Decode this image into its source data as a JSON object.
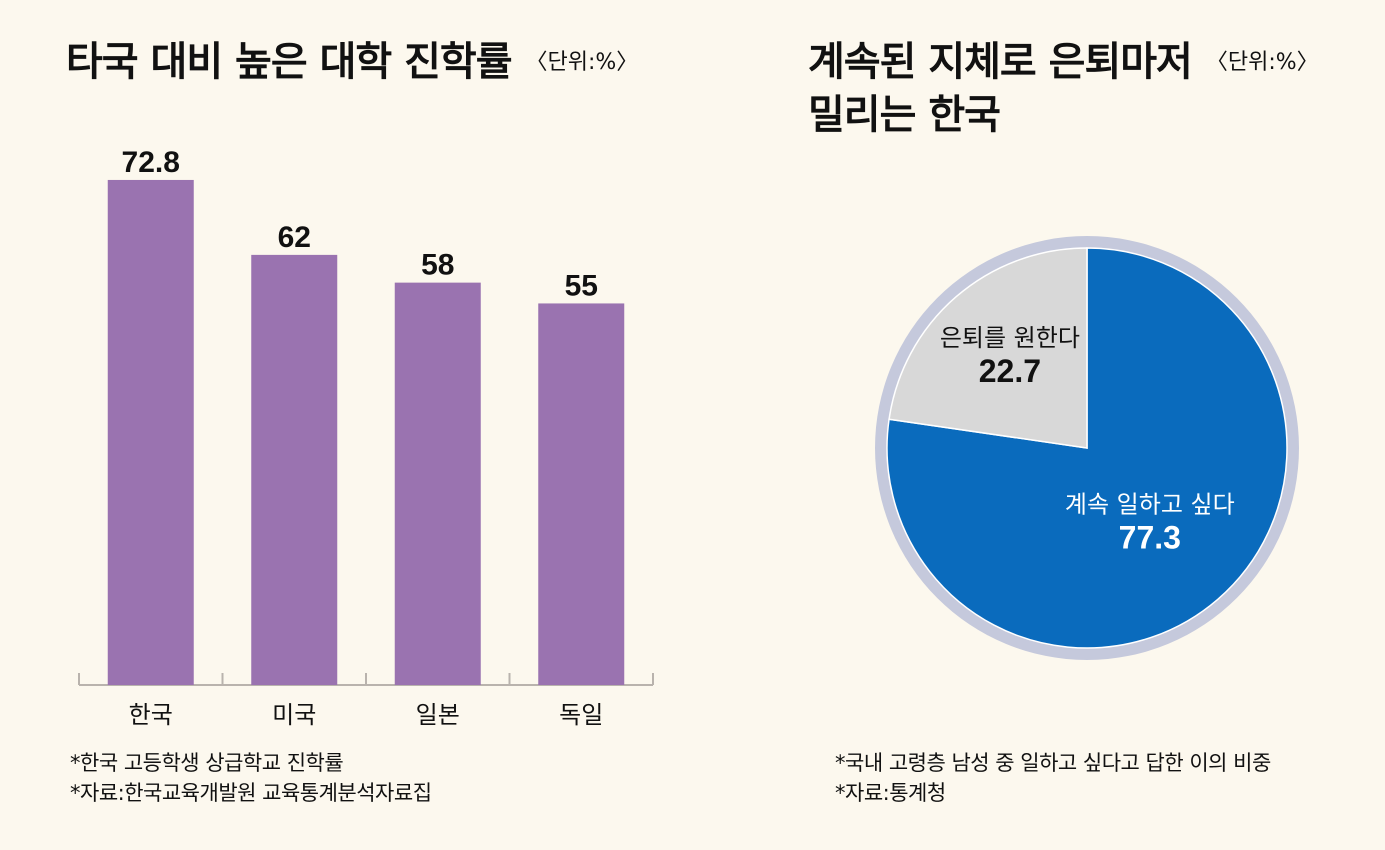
{
  "left_panel": {
    "title": "타국 대비 높은 대학 진학률",
    "unit": "〈단위:%〉",
    "notes": [
      "*한국 고등학생 상급학교 진학률",
      "*자료:한국교육개발원 교육통계분석자료집"
    ]
  },
  "right_panel": {
    "title_line1": "계속된 지체로 은퇴마저",
    "title_line2": "밀리는 한국",
    "unit": "〈단위:%〉",
    "notes": [
      "*국내 고령층 남성 중 일하고 싶다고 답한 이의 비중",
      "*자료:통계청"
    ]
  },
  "colors": {
    "background": "#fcf8ee",
    "bar": "#9a73b0",
    "pie_work": "#0a6bbd",
    "pie_retire": "#d8d8d8",
    "pie_ring": "#c5c9dc",
    "axis": "#b9b3ad"
  },
  "chart_data": [
    {
      "type": "bar",
      "categories": [
        "한국",
        "미국",
        "일본",
        "독일"
      ],
      "values": [
        72.8,
        62,
        58,
        55
      ],
      "value_labels": [
        "72.8",
        "62",
        "58",
        "55"
      ],
      "title": "타국 대비 높은 대학 진학률",
      "ylim": [
        0,
        80
      ],
      "grid": false
    },
    {
      "type": "pie",
      "slices": [
        {
          "label": "계속 일하고 싶다",
          "value": 77.3,
          "value_label": "77.3"
        },
        {
          "label": "은퇴를 원한다",
          "value": 22.7,
          "value_label": "22.7"
        }
      ],
      "title": "계속된 지체로 은퇴마저 밀리는 한국"
    }
  ]
}
